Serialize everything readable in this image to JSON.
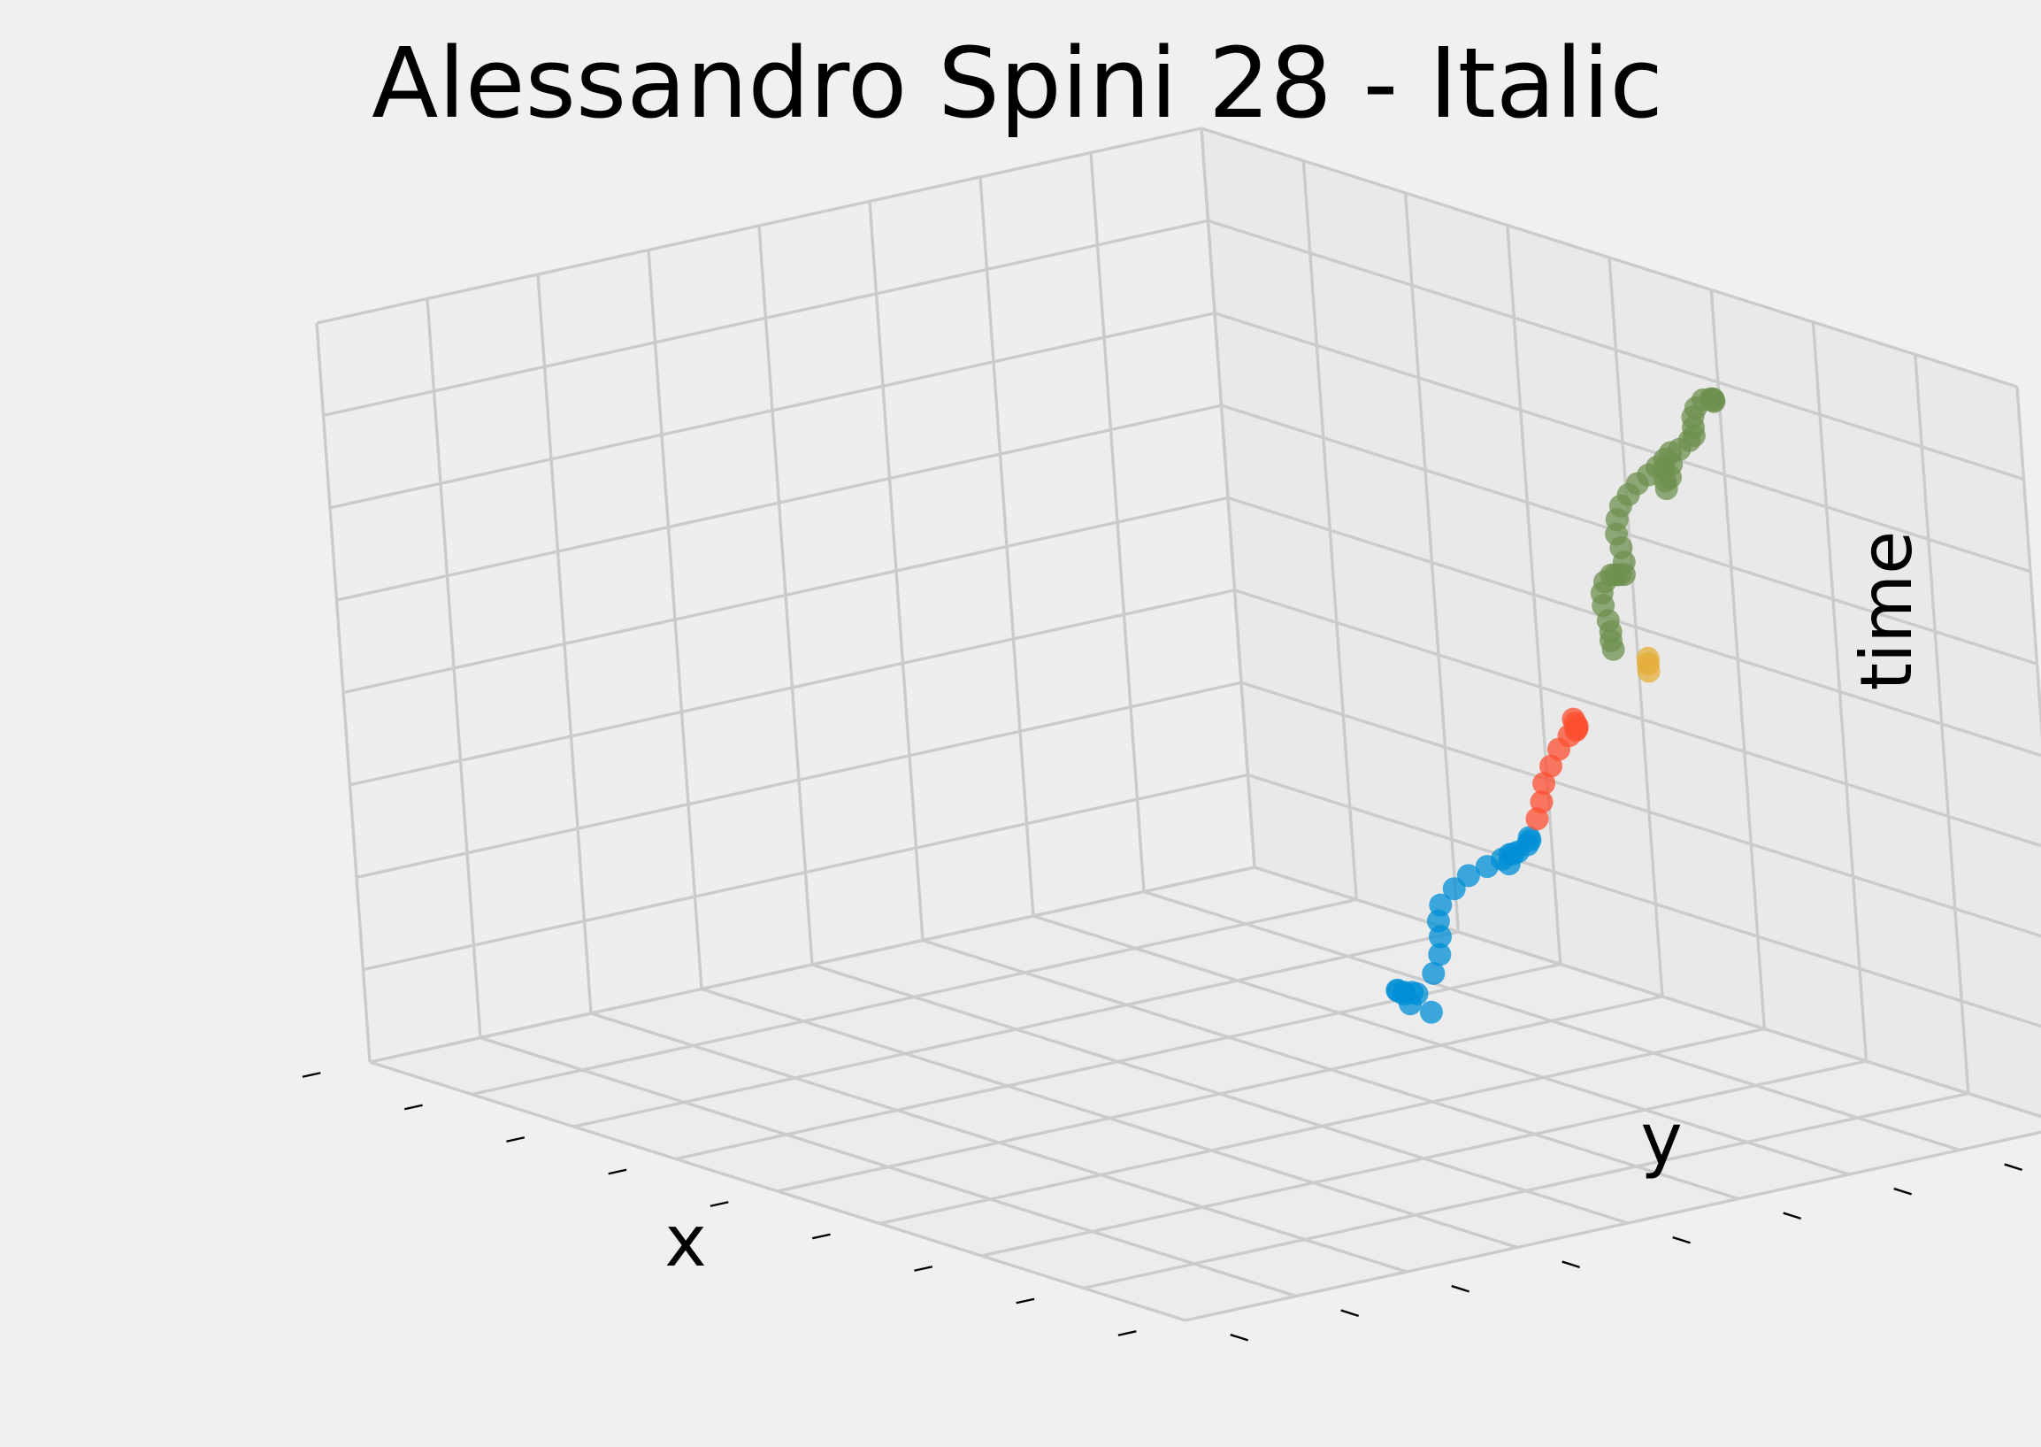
{
  "chart_data": {
    "type": "scatter",
    "projection": "3d",
    "title": "Alessandro Spini 28 - Italic",
    "xlabel": "x",
    "ylabel": "y",
    "zlabel": "time",
    "tick_labels_visible": false,
    "grid": true,
    "series": [
      {
        "color": "#008fd5",
        "points": [
          [
            3.7,
            6.2,
            0.2
          ],
          [
            3.72,
            6.0,
            0.35
          ],
          [
            3.78,
            5.9,
            0.5
          ],
          [
            3.88,
            5.75,
            0.62
          ],
          [
            4.0,
            5.65,
            0.68
          ],
          [
            4.12,
            5.6,
            0.72
          ],
          [
            4.22,
            5.58,
            0.76
          ],
          [
            4.3,
            5.55,
            0.78
          ],
          [
            4.2,
            5.8,
            0.9
          ],
          [
            4.05,
            6.0,
            1.0
          ],
          [
            3.9,
            6.15,
            1.1
          ],
          [
            3.78,
            6.25,
            1.2
          ],
          [
            3.7,
            6.35,
            1.32
          ],
          [
            3.68,
            6.5,
            1.45
          ],
          [
            3.72,
            6.6,
            1.58
          ],
          [
            3.8,
            6.7,
            1.68
          ],
          [
            3.9,
            6.75,
            1.78
          ],
          [
            3.98,
            6.75,
            1.86
          ],
          [
            4.05,
            6.72,
            1.9
          ],
          [
            4.08,
            6.65,
            1.82
          ],
          [
            4.12,
            6.7,
            1.95
          ],
          [
            4.2,
            6.72,
            2.05
          ],
          [
            4.25,
            6.7,
            2.12
          ],
          [
            4.3,
            6.65,
            2.18
          ]
        ]
      },
      {
        "color": "#fc4f30",
        "points": [
          [
            4.45,
            6.6,
            2.45
          ],
          [
            4.45,
            6.65,
            2.62
          ],
          [
            4.43,
            6.7,
            2.8
          ],
          [
            4.4,
            6.8,
            2.95
          ],
          [
            4.38,
            6.9,
            3.1
          ],
          [
            4.38,
            7.0,
            3.22
          ],
          [
            4.45,
            7.0,
            3.3
          ],
          [
            4.52,
            6.95,
            3.36
          ],
          [
            4.58,
            6.9,
            3.42
          ],
          [
            4.62,
            6.85,
            3.48
          ],
          [
            4.66,
            6.8,
            3.55
          ]
        ]
      },
      {
        "color": "#e5ae38",
        "points": [
          [
            4.55,
            7.6,
            3.82
          ],
          [
            4.55,
            7.6,
            3.9
          ],
          [
            4.55,
            7.6,
            3.96
          ]
        ]
      },
      {
        "color": "#6d904f",
        "points": [
          [
            4.66,
            7.2,
            4.2
          ],
          [
            4.7,
            7.15,
            4.32
          ],
          [
            4.76,
            7.1,
            4.45
          ],
          [
            4.8,
            7.05,
            4.6
          ],
          [
            4.76,
            7.05,
            4.75
          ],
          [
            4.7,
            7.1,
            4.85
          ],
          [
            4.68,
            7.15,
            4.95
          ],
          [
            4.75,
            7.15,
            5.05
          ],
          [
            4.85,
            7.1,
            5.1
          ],
          [
            4.95,
            7.05,
            5.15
          ],
          [
            5.05,
            7.0,
            5.2
          ],
          [
            5.08,
            6.98,
            5.35
          ],
          [
            5.06,
            6.98,
            5.5
          ],
          [
            5.0,
            7.0,
            5.62
          ],
          [
            4.96,
            7.05,
            5.75
          ],
          [
            4.95,
            7.1,
            5.88
          ],
          [
            4.98,
            7.15,
            6.0
          ],
          [
            5.02,
            7.2,
            6.12
          ],
          [
            5.08,
            7.25,
            6.22
          ],
          [
            5.14,
            7.28,
            6.32
          ],
          [
            5.2,
            7.3,
            6.42
          ],
          [
            5.24,
            7.32,
            6.5
          ],
          [
            5.3,
            7.2,
            6.38
          ],
          [
            5.36,
            7.15,
            6.28
          ],
          [
            5.4,
            7.12,
            6.22
          ],
          [
            5.38,
            7.18,
            6.32
          ],
          [
            5.32,
            7.25,
            6.42
          ],
          [
            5.3,
            7.35,
            6.55
          ],
          [
            5.35,
            7.4,
            6.65
          ],
          [
            5.4,
            7.4,
            6.72
          ],
          [
            5.42,
            7.38,
            6.82
          ],
          [
            5.4,
            7.4,
            6.92
          ],
          [
            5.38,
            7.45,
            7.0
          ],
          [
            5.4,
            7.5,
            7.08
          ],
          [
            5.48,
            7.5,
            7.12
          ],
          [
            5.56,
            7.45,
            7.16
          ],
          [
            5.62,
            7.4,
            7.18
          ],
          [
            5.68,
            7.35,
            7.2
          ]
        ]
      }
    ]
  }
}
